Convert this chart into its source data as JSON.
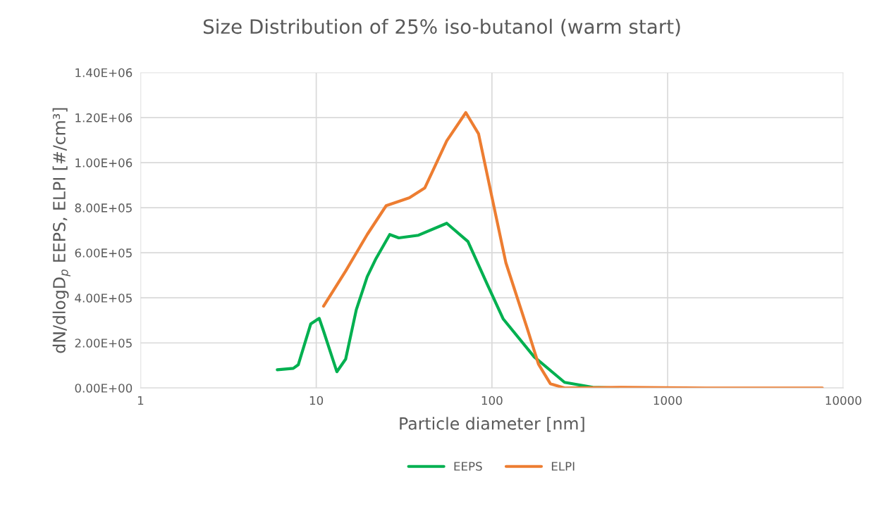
{
  "chart_data": {
    "type": "line",
    "title": "Size Distribution of 25% iso-butanol (warm start)",
    "xlabel": "Particle diameter [nm]",
    "ylabel": "dN/dlogD$_{p}$ EEPS, ELPI [#/cm³]",
    "log": "x",
    "xlim": [
      1,
      10000
    ],
    "xticks": [
      1,
      10,
      100,
      1000,
      10000
    ],
    "ylim": [
      0,
      1400000
    ],
    "yticks": [
      {
        "value": 0,
        "label": "0.00E+00"
      },
      {
        "value": 200000,
        "label": "2.00E+05"
      },
      {
        "value": 400000,
        "label": "4.00E+05"
      },
      {
        "value": 600000,
        "label": "6.00E+05"
      },
      {
        "value": 800000,
        "label": "8.00E+05"
      },
      {
        "value": 1000000,
        "label": "1.00E+06"
      },
      {
        "value": 1200000,
        "label": "1.20E+06"
      },
      {
        "value": 1400000,
        "label": "1.40E+06"
      }
    ],
    "grid": true,
    "legend": "bottom",
    "marker": "none",
    "line_style": "solid",
    "series": [
      {
        "name": "EEPS",
        "color": "#00b050",
        "x": [
          6.0,
          7.4,
          7.9,
          9.3,
          10.4,
          11.0,
          13.1,
          14.7,
          16.9,
          19.5,
          21.9,
          26.2,
          29.5,
          38.2,
          55.3,
          73.0,
          93.7,
          116,
          174,
          259,
          375,
          519
        ],
        "values": [
          81000,
          87000,
          103000,
          284000,
          309000,
          253000,
          72000,
          128000,
          347000,
          494000,
          575000,
          681000,
          666000,
          678000,
          731000,
          650000,
          463000,
          306000,
          138000,
          25000,
          3000,
          0
        ]
      },
      {
        "name": "ELPI",
        "color": "#ed7d31",
        "x": [
          11.0,
          14.7,
          19.5,
          25.0,
          33.9,
          41.5,
          55.3,
          71.0,
          83.9,
          100,
          120,
          159,
          184,
          215,
          259,
          543,
          1648,
          7600
        ],
        "values": [
          363000,
          519000,
          681000,
          809000,
          844000,
          888000,
          1097000,
          1222000,
          1128000,
          847000,
          556000,
          263000,
          106000,
          19000,
          0,
          3000,
          0,
          0
        ]
      }
    ]
  }
}
